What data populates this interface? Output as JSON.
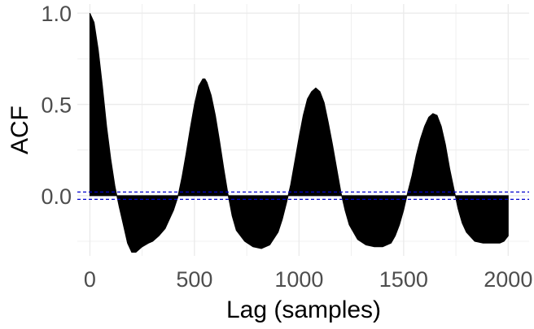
{
  "chart_data": {
    "type": "area",
    "title": "",
    "xlabel": "Lag (samples)",
    "ylabel": "ACF",
    "xlim": [
      -60,
      2100
    ],
    "ylim": [
      -0.33,
      1.05
    ],
    "x_ticks": [
      0,
      500,
      1000,
      1500,
      2000
    ],
    "x_tick_labels": [
      "0",
      "500",
      "1000",
      "1500",
      "2000"
    ],
    "y_ticks": [
      0.0,
      0.5,
      1.0
    ],
    "y_tick_labels": [
      "0.0",
      "0.5",
      "1.0"
    ],
    "grid": true,
    "legend": "none",
    "confidence_band": [
      -0.02,
      0.02
    ],
    "colors": {
      "fill": "#000000",
      "band": "#0000cc",
      "grid": "#ebebeb"
    },
    "series": [
      {
        "x": [
          0,
          20,
          40,
          60,
          80,
          100,
          120,
          140,
          160,
          180,
          200,
          220,
          250,
          280,
          300,
          330,
          360,
          380,
          400,
          420,
          440,
          460,
          480,
          500,
          520,
          540,
          550,
          560,
          580,
          600,
          620,
          640,
          660,
          680,
          700,
          740,
          780,
          820,
          860,
          900,
          920,
          940,
          960,
          980,
          1000,
          1020,
          1040,
          1060,
          1080,
          1100,
          1120,
          1140,
          1160,
          1180,
          1200,
          1220,
          1240,
          1280,
          1320,
          1360,
          1400,
          1440,
          1460,
          1480,
          1500,
          1520,
          1540,
          1560,
          1580,
          1600,
          1620,
          1640,
          1660,
          1680,
          1700,
          1720,
          1740,
          1760,
          1780,
          1800,
          1840,
          1880,
          1920,
          1960,
          1980,
          2000
        ],
        "y": [
          1.0,
          0.95,
          0.8,
          0.6,
          0.38,
          0.2,
          0.05,
          -0.06,
          -0.16,
          -0.26,
          -0.31,
          -0.31,
          -0.28,
          -0.26,
          -0.25,
          -0.22,
          -0.18,
          -0.13,
          -0.08,
          -0.01,
          0.1,
          0.23,
          0.37,
          0.5,
          0.6,
          0.64,
          0.64,
          0.62,
          0.55,
          0.44,
          0.3,
          0.15,
          0.01,
          -0.11,
          -0.19,
          -0.25,
          -0.28,
          -0.29,
          -0.27,
          -0.2,
          -0.13,
          -0.04,
          0.06,
          0.19,
          0.32,
          0.44,
          0.53,
          0.57,
          0.59,
          0.57,
          0.51,
          0.4,
          0.28,
          0.15,
          0.02,
          -0.08,
          -0.16,
          -0.24,
          -0.27,
          -0.28,
          -0.28,
          -0.26,
          -0.22,
          -0.16,
          -0.08,
          0.02,
          0.11,
          0.22,
          0.31,
          0.38,
          0.43,
          0.45,
          0.44,
          0.38,
          0.28,
          0.15,
          0.04,
          -0.07,
          -0.15,
          -0.2,
          -0.25,
          -0.26,
          -0.26,
          -0.26,
          -0.25,
          -0.22
        ]
      }
    ]
  }
}
